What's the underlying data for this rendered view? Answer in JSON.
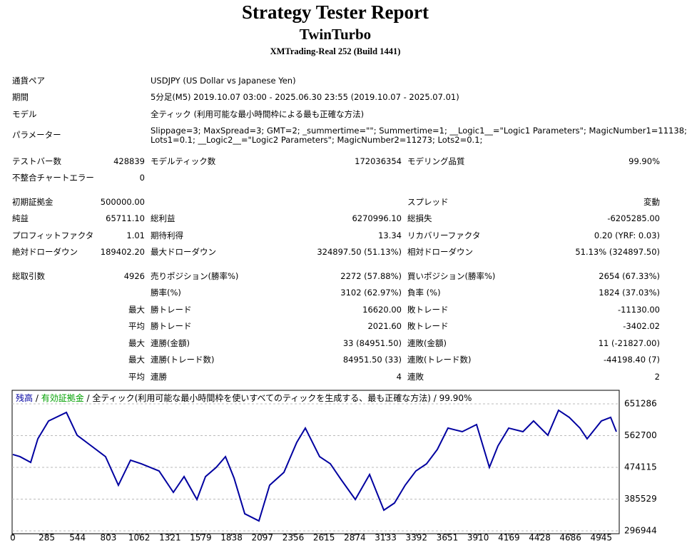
{
  "header": {
    "title": "Strategy Tester Report",
    "subtitle": "TwinTurbo",
    "server": "XMTrading-Real 252 (Build 1441)"
  },
  "info": [
    {
      "label": "通貨ペア",
      "lines": [
        "USDJPY (US Dollar vs Japanese Yen)"
      ]
    },
    {
      "label": "期間",
      "lines": [
        "5分足(M5) 2019.10.07 03:00 - 2025.06.30 23:55 (2019.10.07 - 2025.07.01)"
      ]
    },
    {
      "label": "モデル",
      "lines": [
        "全ティック (利用可能な最小時間枠による最も正確な方法)"
      ]
    },
    {
      "label": "パラメーター",
      "lines": [
        "Slippage=3; MaxSpread=3; GMT=2; _summertime=\"\"; Summertime=1; __Logic1__=\"Logic1 Parameters\"; MagicNumber1=11138;",
        "Lots1=0.1; __Logic2__=\"Logic2 Parameters\"; MagicNumber2=11273; Lots2=0.1;"
      ]
    }
  ],
  "stats": [
    {
      "l1": "テストバー数",
      "v1": "428839",
      "l2": "モデルティック数",
      "v2": "172036354",
      "l3": "モデリング品質",
      "v3": "99.90%"
    },
    {
      "l1": "不整合チャートエラー",
      "v1": "0"
    },
    {
      "l1": "初期証拠金",
      "v1": "500000.00",
      "l3": "スプレッド",
      "v3": "変動"
    },
    {
      "l1": "純益",
      "v1": "65711.10",
      "l2": "総利益",
      "v2": "6270996.10",
      "l3": "総損失",
      "v3": "-6205285.00"
    },
    {
      "l1": "プロフィットファクタ",
      "v1": "1.01",
      "l2": "期待利得",
      "v2": "13.34",
      "l3": "リカバリーファクタ",
      "v3": "0.20 (YRF: 0.03)"
    },
    {
      "l1": "絶対ドローダウン",
      "v1": "189402.20",
      "l2": "最大ドローダウン",
      "v2": "324897.50 (51.13%)",
      "l3": "相対ドローダウン",
      "v3": "51.13% (324897.50)"
    },
    {
      "l1": "総取引数",
      "v1": "4926",
      "l2": "売りポジション(勝率%)",
      "v2": "2272 (57.88%)",
      "l3": "買いポジション(勝率%)",
      "v3": "2654 (67.33%)"
    },
    {
      "l2": "勝率(%)",
      "v2": "3102 (62.97%)",
      "l3": "負率 (%)",
      "v3": "1824 (37.03%)"
    },
    {
      "v1": "最大",
      "l2": "勝トレード",
      "v2": "16620.00",
      "l3": "敗トレード",
      "v3": "-11130.00"
    },
    {
      "v1": "平均",
      "l2": "勝トレード",
      "v2": "2021.60",
      "l3": "敗トレード",
      "v3": "-3402.02"
    },
    {
      "v1": "最大",
      "l2": "連勝(金額)",
      "v2": "33 (84951.50)",
      "l3": "連敗(金額)",
      "v3": "11 (-21827.00)"
    },
    {
      "v1": "最大",
      "l2": "連勝(トレード数)",
      "v2": "84951.50 (33)",
      "l3": "連敗(トレード数)",
      "v3": "-44198.40 (7)"
    },
    {
      "v1": "平均",
      "l2": "連勝",
      "v2": "4",
      "l3": "連敗",
      "v3": "2"
    }
  ],
  "chart_data": {
    "type": "line",
    "title": "全ティック(利用可能な最小時間枠を使いすべてのティックを生成する、最も正確な方法)",
    "quality": "99.90%",
    "legend": [
      {
        "name": "残高",
        "color": "#0000a0"
      },
      {
        "name": "有効証拠金",
        "color": "#00a000"
      }
    ],
    "x": [
      0,
      60,
      150,
      210,
      300,
      450,
      540,
      659,
      779,
      887,
      989,
      1079,
      1229,
      1349,
      1439,
      1547,
      1619,
      1709,
      1787,
      1859,
      1949,
      2068,
      2158,
      2278,
      2386,
      2458,
      2578,
      2668,
      2758,
      2878,
      2998,
      3118,
      3207,
      3297,
      3387,
      3477,
      3567,
      3657,
      3777,
      3897,
      4005,
      4077,
      4167,
      4287,
      4376,
      4496,
      4586,
      4676,
      4766,
      4826,
      4946,
      5024,
      5072
    ],
    "series": [
      {
        "name": "残高",
        "color": "#0000a0",
        "values": [
          510000,
          504000,
          488000,
          553700,
          603500,
          627400,
          563700,
          534000,
          504000,
          424300,
          494000,
          484100,
          464000,
          404400,
          448300,
          384500,
          448300,
          474100,
          504000,
          444300,
          344700,
          324800,
          424300,
          460200,
          543800,
          583600,
          504000,
          484100,
          440300,
          384500,
          454200,
          354700,
          374600,
          424300,
          464000,
          484100,
          523900,
          583600,
          573600,
          593500,
          474100,
          534000,
          583600,
          573600,
          603500,
          563700,
          633400,
          613500,
          583600,
          553700,
          603500,
          613500,
          573600
        ]
      }
    ],
    "xlim": [
      0,
      5084
    ],
    "xticks": [
      0,
      285,
      544,
      803,
      1062,
      1321,
      1579,
      1838,
      2097,
      2356,
      2615,
      2874,
      3133,
      3392,
      3651,
      3910,
      4169,
      4428,
      4686,
      4945
    ],
    "ylim": [
      289000,
      689000
    ],
    "yticks": [
      296944,
      385529,
      474115,
      562700,
      651286
    ],
    "grid": true
  }
}
